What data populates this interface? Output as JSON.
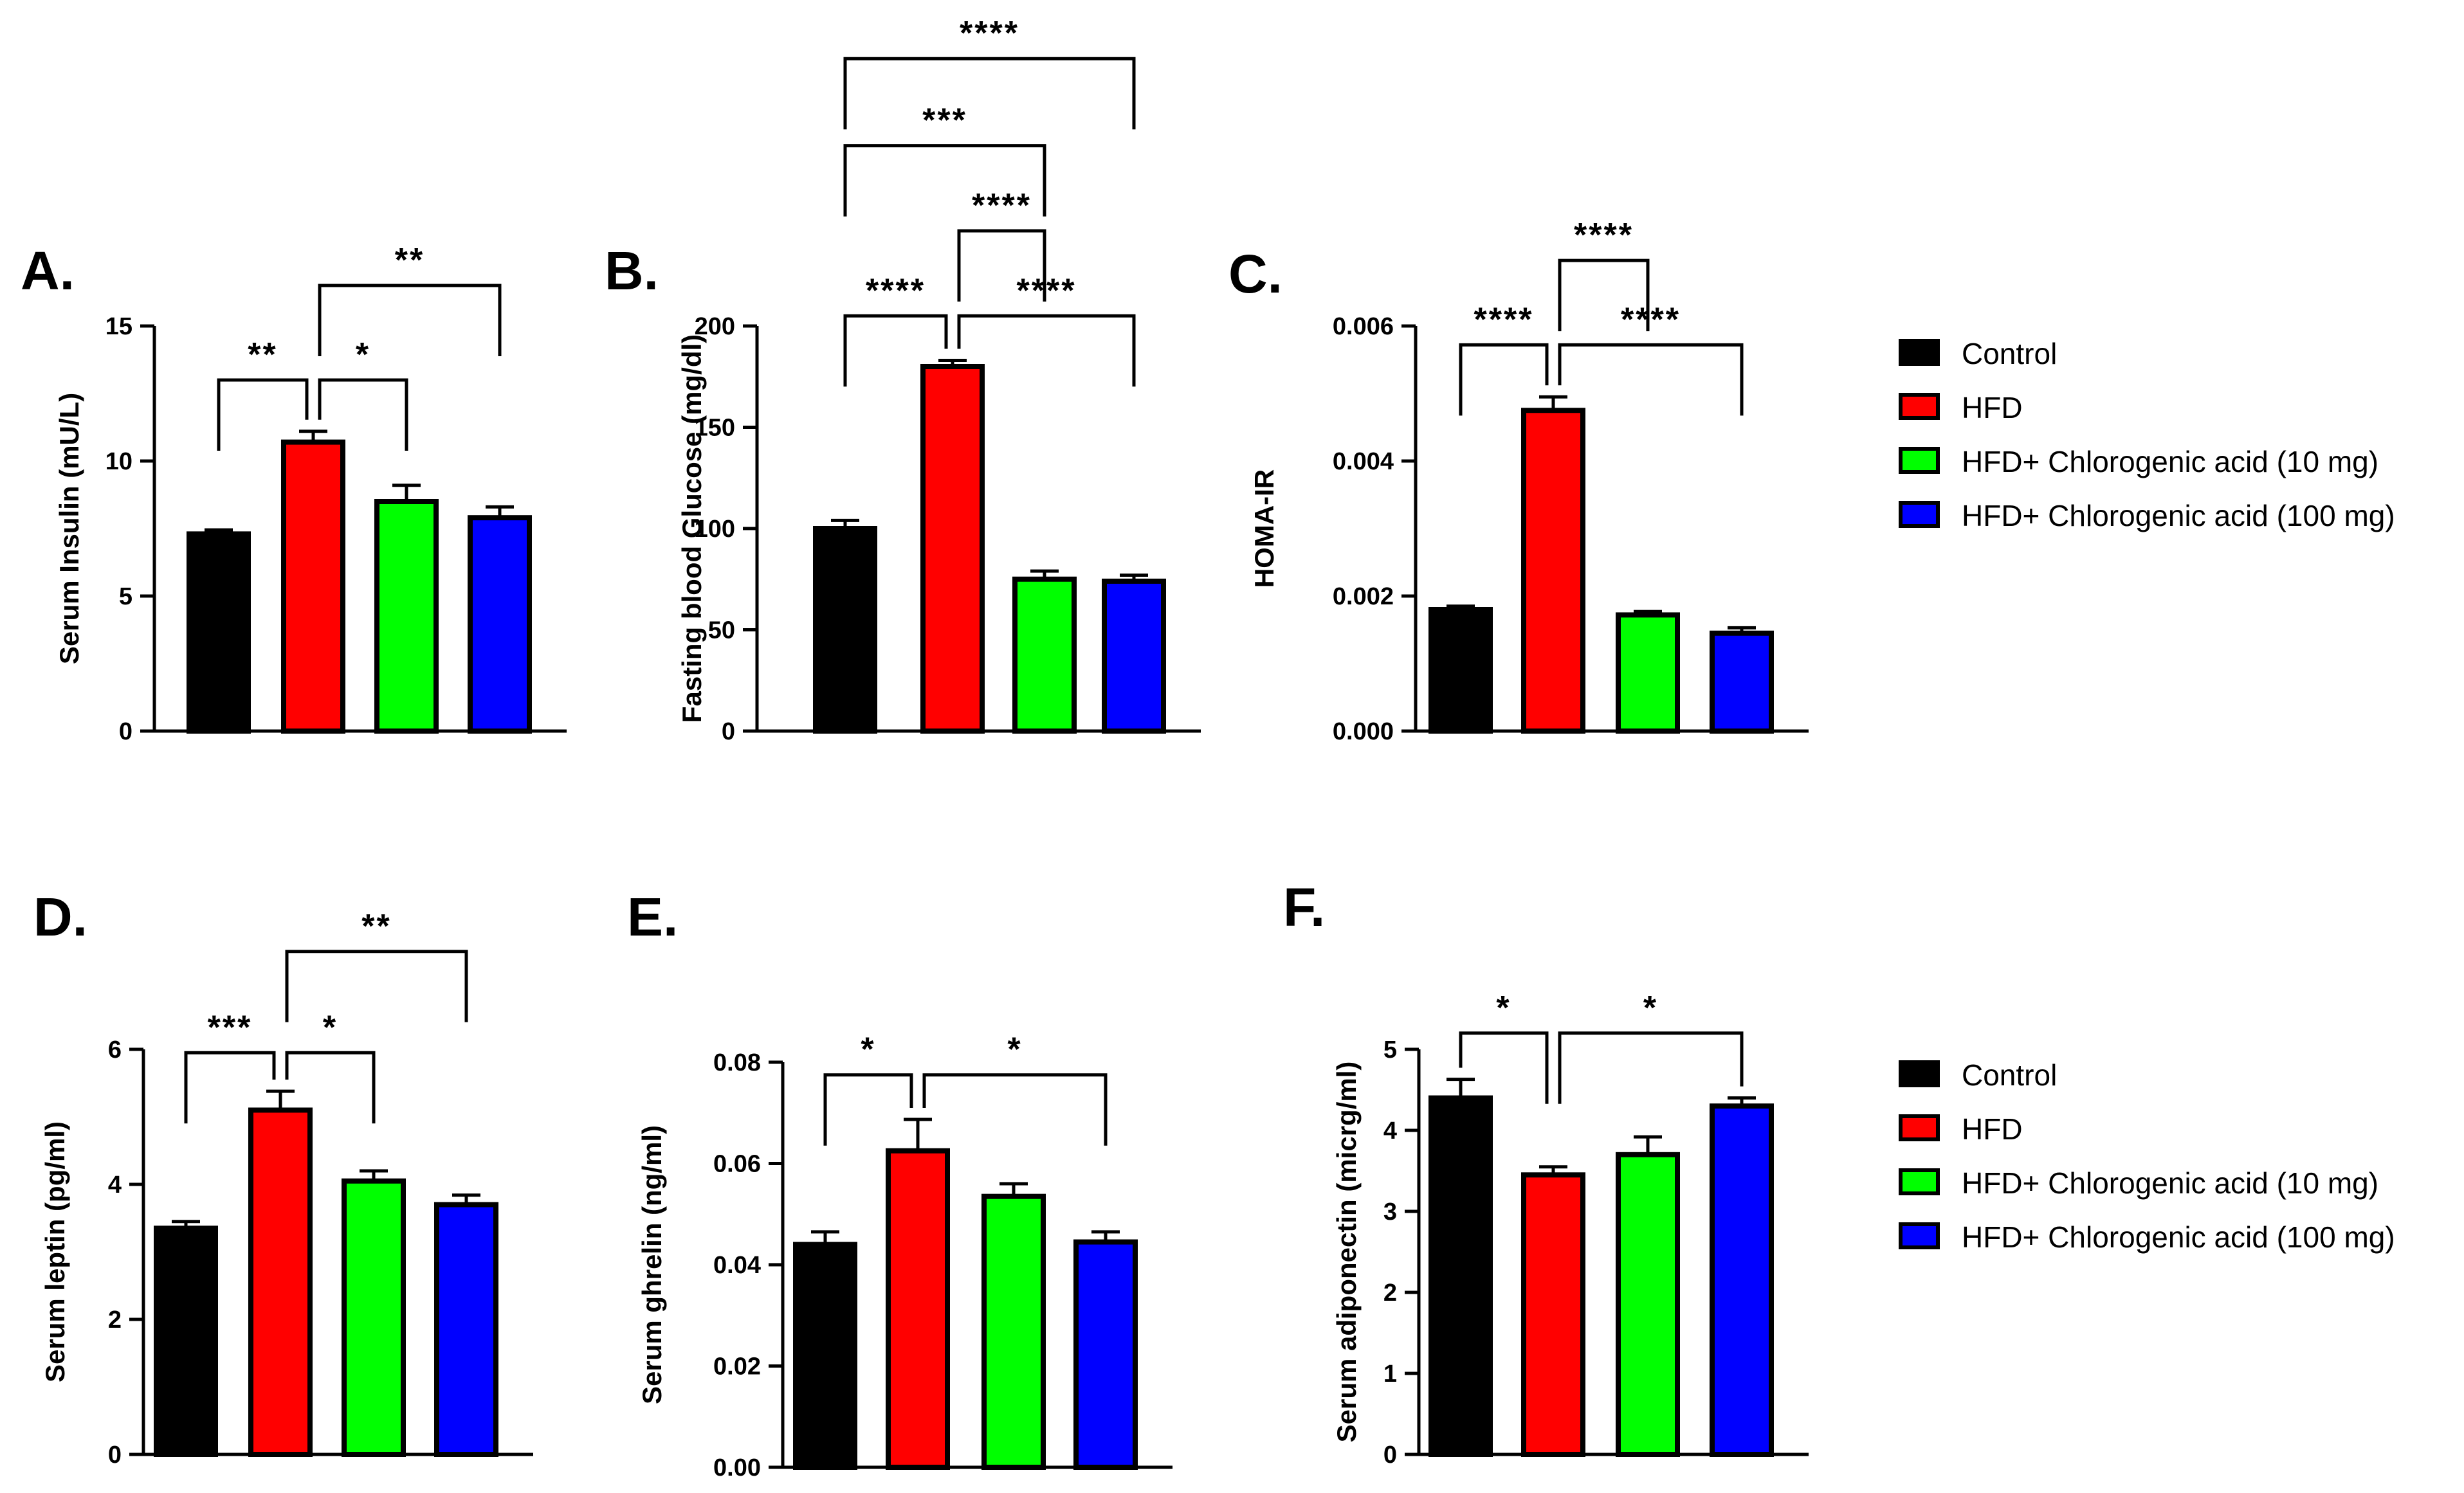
{
  "figure": {
    "legend": {
      "entries": [
        {
          "label": "Control",
          "color": "#000000"
        },
        {
          "label": "HFD",
          "color": "#ff0000"
        },
        {
          "label": "HFD+ Chlorogenic acid (10 mg)",
          "color": "#00ff00"
        },
        {
          "label": "HFD+ Chlorogenic acid (100 mg)",
          "color": "#0000ff"
        }
      ]
    }
  },
  "chart_data": [
    {
      "type": "bar",
      "panel": "A.",
      "ylabel": "Serum Insulin (mU/L)",
      "categories": [
        "Control",
        "HFD",
        "HFD+ Chlorogenic acid (10 mg)",
        "HFD+ Chlorogenic acid (100 mg)"
      ],
      "values": [
        7.3,
        10.7,
        8.5,
        7.9
      ],
      "errors": [
        0.15,
        0.4,
        0.6,
        0.4
      ],
      "ylim": [
        0,
        15
      ],
      "yticks": [
        0,
        5,
        10,
        15
      ],
      "tick_labels": [
        "0",
        "5",
        "10",
        "15"
      ],
      "legend": "right",
      "significance": [
        {
          "from": 0,
          "to": 1,
          "label": "**",
          "y": 13
        },
        {
          "from": 1,
          "to": 2,
          "label": "*",
          "y": 13
        },
        {
          "from": 1,
          "to": 3,
          "label": "**",
          "y": 16.5
        }
      ]
    },
    {
      "type": "bar",
      "panel": "B.",
      "ylabel": "Fasting blood Glucose (mg/dl)",
      "categories": [
        "Control",
        "HFD",
        "HFD+ Chlorogenic acid (10 mg)",
        "HFD+ Chlorogenic acid (100 mg)"
      ],
      "values": [
        100,
        180,
        75,
        74
      ],
      "errors": [
        4,
        3,
        4,
        3
      ],
      "ylim": [
        0,
        200
      ],
      "yticks": [
        0,
        50,
        100,
        150,
        200
      ],
      "tick_labels": [
        "0",
        "50",
        "100",
        "150",
        "200"
      ],
      "legend": "right",
      "significance": [
        {
          "from": 0,
          "to": 1,
          "label": "****",
          "y": 205
        },
        {
          "from": 1,
          "to": 3,
          "label": "****",
          "y": 205
        },
        {
          "from": 1,
          "to": 2,
          "label": "****",
          "y": 247
        },
        {
          "from": 0,
          "to": 2,
          "label": "***",
          "y": 289
        },
        {
          "from": 0,
          "to": 3,
          "label": "****",
          "y": 332
        }
      ]
    },
    {
      "type": "bar",
      "panel": "C.",
      "ylabel": "HOMA-IR",
      "categories": [
        "Control",
        "HFD",
        "HFD+ Chlorogenic acid (10 mg)",
        "HFD+ Chlorogenic acid (100 mg)"
      ],
      "values": [
        0.0018,
        0.00475,
        0.00172,
        0.00145
      ],
      "errors": [
        5e-05,
        0.0002,
        5e-05,
        8e-05
      ],
      "ylim": [
        0,
        0.006
      ],
      "yticks": [
        0,
        0.002,
        0.004,
        0.006
      ],
      "tick_labels": [
        "0.000",
        "0.002",
        "0.004",
        "0.006"
      ],
      "legend": "right",
      "significance": [
        {
          "from": 0,
          "to": 1,
          "label": "****",
          "y": 0.00572
        },
        {
          "from": 1,
          "to": 3,
          "label": "****",
          "y": 0.00572
        },
        {
          "from": 1,
          "to": 2,
          "label": "****",
          "y": 0.00697
        }
      ]
    },
    {
      "type": "bar",
      "panel": "D.",
      "ylabel": "Serum leptin  (pg/ml)",
      "categories": [
        "Control",
        "HFD",
        "HFD+ Chlorogenic acid (10 mg)",
        "HFD+ Chlorogenic acid (100 mg)"
      ],
      "values": [
        3.35,
        5.1,
        4.05,
        3.7
      ],
      "errors": [
        0.1,
        0.28,
        0.15,
        0.14
      ],
      "ylim": [
        0,
        6
      ],
      "yticks": [
        0,
        2,
        4,
        6
      ],
      "tick_labels": [
        "0",
        "2",
        "4",
        "6"
      ],
      "legend": "right",
      "significance": [
        {
          "from": 0,
          "to": 1,
          "label": "***",
          "y": 5.95
        },
        {
          "from": 1,
          "to": 2,
          "label": "*",
          "y": 5.95
        },
        {
          "from": 1,
          "to": 3,
          "label": "**",
          "y": 7.45
        }
      ]
    },
    {
      "type": "bar",
      "panel": "E.",
      "ylabel": "Serum ghrelin (ng/ml)",
      "categories": [
        "Control",
        "HFD",
        "HFD+ Chlorogenic acid (10 mg)",
        "HFD+ Chlorogenic acid (100 mg)"
      ],
      "values": [
        0.044,
        0.0625,
        0.0535,
        0.0445
      ],
      "errors": [
        0.0025,
        0.0062,
        0.0025,
        0.002
      ],
      "ylim": [
        0,
        0.08
      ],
      "yticks": [
        0,
        0.02,
        0.04,
        0.06,
        0.08
      ],
      "tick_labels": [
        "0.00",
        "0.02",
        "0.04",
        "0.06",
        "0.08"
      ],
      "legend": "right",
      "significance": [
        {
          "from": 0,
          "to": 1,
          "label": "*",
          "y": 0.0775
        },
        {
          "from": 1,
          "to": 3,
          "label": "*",
          "y": 0.0775
        }
      ]
    },
    {
      "type": "bar",
      "panel": "F.",
      "ylabel": "Serum adiponectin (micrg/ml)",
      "categories": [
        "Control",
        "HFD",
        "HFD+ Chlorogenic acid (10 mg)",
        "HFD+ Chlorogenic acid (100 mg)"
      ],
      "values": [
        4.4,
        3.45,
        3.7,
        4.3
      ],
      "errors": [
        0.23,
        0.1,
        0.22,
        0.1
      ],
      "ylim": [
        0,
        5
      ],
      "yticks": [
        0,
        1,
        2,
        3,
        4,
        5
      ],
      "tick_labels": [
        "0",
        "1",
        "2",
        "3",
        "4",
        "5"
      ],
      "legend": "right",
      "significance": [
        {
          "from": 0,
          "to": 1,
          "label": "*",
          "y": 5.2
        },
        {
          "from": 1,
          "to": 3,
          "label": "*",
          "y": 5.2
        }
      ]
    }
  ]
}
